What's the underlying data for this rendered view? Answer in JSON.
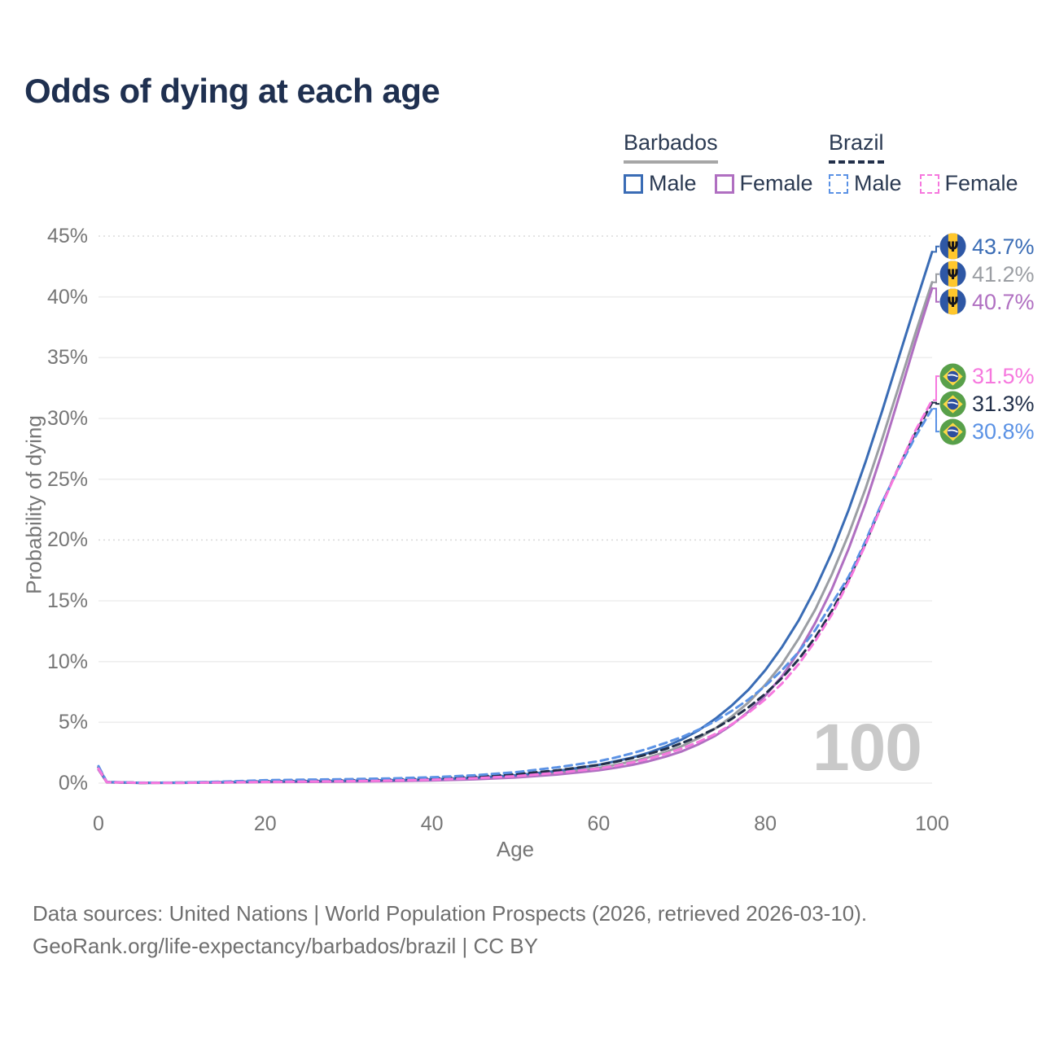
{
  "title": "Odds of dying at each age",
  "watermark": "100",
  "legend": {
    "groups": [
      {
        "label": "Barbados",
        "line_style": "solid",
        "underline_color": "#a6a6a6",
        "items": [
          {
            "label": "Male",
            "color": "#3a6cb5"
          },
          {
            "label": "Female",
            "color": "#b06fc1"
          }
        ]
      },
      {
        "label": "Brazil",
        "line_style": "dashed",
        "underline_color": "#22304a",
        "items": [
          {
            "label": "Male",
            "color": "#5b92e5"
          },
          {
            "label": "Female",
            "color": "#f678de"
          }
        ]
      }
    ]
  },
  "footer": {
    "line1": "Data sources: United Nations | World Population Prospects (2026, retrieved 2026-03-10).",
    "line2": "GeoRank.org/life-expectancy/barbados/brazil | CC BY"
  },
  "chart_data": {
    "type": "line",
    "title": "Odds of dying at each age",
    "xlabel": "Age",
    "ylabel": "Probability of dying",
    "xlim": [
      0,
      100
    ],
    "ylim": [
      0,
      45
    ],
    "xticks": [
      0,
      20,
      40,
      60,
      80,
      100
    ],
    "yticks": [
      0,
      5,
      10,
      15,
      20,
      25,
      30,
      35,
      40,
      45
    ],
    "ytick_suffix": "%",
    "dotted_gridlines": [
      20,
      45
    ],
    "grid": true,
    "legend_position": "top-right",
    "x": [
      0,
      1,
      5,
      10,
      15,
      20,
      25,
      30,
      35,
      40,
      45,
      50,
      55,
      60,
      62,
      64,
      66,
      68,
      70,
      72,
      74,
      76,
      78,
      80,
      82,
      84,
      86,
      88,
      90,
      92,
      94,
      96,
      98,
      100
    ],
    "series": [
      {
        "name": "Barbados Male",
        "country": "Barbados",
        "sex": "Male",
        "color": "#3a6cb5",
        "dash": "solid",
        "end_label": "43.7%",
        "end_value": 43.7,
        "values": [
          1.3,
          0.09,
          0.03,
          0.04,
          0.08,
          0.14,
          0.17,
          0.2,
          0.24,
          0.31,
          0.44,
          0.65,
          1.0,
          1.5,
          1.8,
          2.1,
          2.5,
          3.0,
          3.6,
          4.35,
          5.3,
          6.4,
          7.7,
          9.3,
          11.2,
          13.4,
          16.0,
          19.0,
          22.5,
          26.4,
          30.6,
          35.0,
          39.4,
          43.7
        ]
      },
      {
        "name": "Barbados Both sexes",
        "country": "Barbados",
        "sex": "Both",
        "color": "#9b9ea3",
        "dash": "solid",
        "end_label": "41.2%",
        "end_value": 41.2,
        "values": [
          1.2,
          0.08,
          0.03,
          0.03,
          0.06,
          0.11,
          0.14,
          0.16,
          0.2,
          0.26,
          0.37,
          0.55,
          0.85,
          1.25,
          1.5,
          1.78,
          2.12,
          2.55,
          3.05,
          3.7,
          4.5,
          5.5,
          6.65,
          8.1,
          9.8,
          11.9,
          14.3,
          17.2,
          20.5,
          24.2,
          28.3,
          32.6,
          37.0,
          41.2
        ]
      },
      {
        "name": "Barbados Female",
        "country": "Barbados",
        "sex": "Female",
        "color": "#b06fc1",
        "dash": "solid",
        "end_label": "40.7%",
        "end_value": 40.7,
        "values": [
          1.1,
          0.07,
          0.02,
          0.03,
          0.05,
          0.08,
          0.1,
          0.13,
          0.16,
          0.22,
          0.31,
          0.46,
          0.7,
          1.05,
          1.26,
          1.5,
          1.8,
          2.17,
          2.62,
          3.2,
          3.9,
          4.8,
          5.9,
          7.2,
          8.8,
          10.8,
          13.2,
          16.0,
          19.3,
          23.0,
          27.2,
          31.7,
          36.3,
          40.7
        ]
      },
      {
        "name": "Brazil Female",
        "country": "Brazil",
        "sex": "Female",
        "color": "#f678de",
        "dash": "dashed",
        "end_label": "31.5%",
        "end_value": 31.5,
        "values": [
          1.2,
          0.08,
          0.03,
          0.03,
          0.06,
          0.1,
          0.13,
          0.16,
          0.21,
          0.28,
          0.4,
          0.57,
          0.85,
          1.2,
          1.42,
          1.7,
          2.0,
          2.4,
          2.85,
          3.4,
          4.05,
          4.85,
          5.8,
          6.9,
          8.2,
          9.8,
          11.7,
          13.9,
          16.6,
          19.6,
          22.9,
          26.0,
          29.0,
          31.5
        ]
      },
      {
        "name": "Brazil Both sexes",
        "country": "Brazil",
        "sex": "Both",
        "color": "#22304a",
        "dash": "dashed",
        "end_label": "31.3%",
        "end_value": 31.3,
        "values": [
          1.3,
          0.09,
          0.03,
          0.04,
          0.1,
          0.17,
          0.21,
          0.25,
          0.3,
          0.38,
          0.52,
          0.73,
          1.05,
          1.5,
          1.75,
          2.05,
          2.4,
          2.8,
          3.3,
          3.85,
          4.5,
          5.3,
          6.25,
          7.35,
          8.65,
          10.2,
          12.0,
          14.2,
          16.75,
          19.7,
          23.0,
          26.0,
          28.8,
          31.3
        ]
      },
      {
        "name": "Brazil Male",
        "country": "Brazil",
        "sex": "Male",
        "color": "#5b92e5",
        "dash": "dashed",
        "end_label": "30.8%",
        "end_value": 30.8,
        "values": [
          1.4,
          0.1,
          0.04,
          0.05,
          0.13,
          0.24,
          0.29,
          0.33,
          0.39,
          0.48,
          0.64,
          0.9,
          1.3,
          1.8,
          2.1,
          2.45,
          2.85,
          3.3,
          3.8,
          4.4,
          5.1,
          5.95,
          6.9,
          8.0,
          9.3,
          10.8,
          12.6,
          14.8,
          17.0,
          19.9,
          23.1,
          25.9,
          28.5,
          30.8
        ]
      }
    ]
  }
}
